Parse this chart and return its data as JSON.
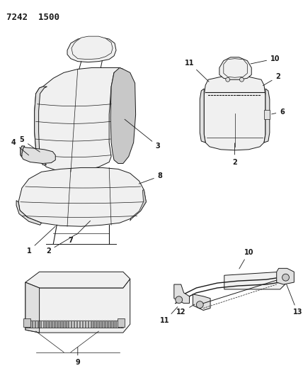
{
  "title": "7242  1500",
  "bg_color": "#ffffff",
  "line_color": "#1a1a1a",
  "fill_light": "#f0f0f0",
  "fill_mid": "#e0e0e0",
  "fill_dark": "#c8c8c8",
  "title_fontsize": 9,
  "label_fontsize": 7
}
